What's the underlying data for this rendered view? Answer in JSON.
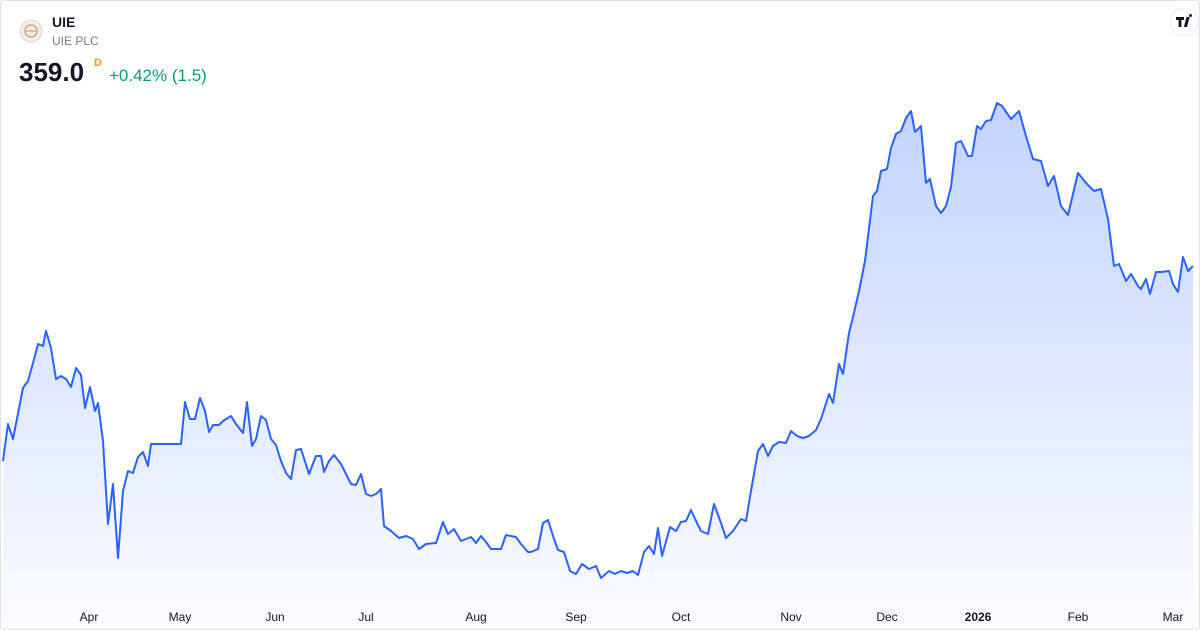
{
  "symbol": "UIE",
  "name": "UIE PLC",
  "price": "359.0",
  "interval": "D",
  "change": "+0.42% (1.5)",
  "chart_data": {
    "type": "area",
    "color": "#2962ff",
    "xlim": [
      0,
      240
    ],
    "ylim": [
      213,
      465
    ],
    "xticks": [
      {
        "value": 17.6,
        "label": "Apr"
      },
      {
        "value": 35.8,
        "label": "May"
      },
      {
        "value": 54.8,
        "label": "Jun"
      },
      {
        "value": 73,
        "label": "Jul"
      },
      {
        "value": 95,
        "label": "Aug"
      },
      {
        "value": 115,
        "label": "Sep"
      },
      {
        "value": 136,
        "label": "Oct"
      },
      {
        "value": 158,
        "label": "Nov"
      },
      {
        "value": 177.2,
        "label": "Dec"
      },
      {
        "value": 195.4,
        "label": "2026",
        "bold": true
      },
      {
        "value": 215.4,
        "label": "Feb"
      },
      {
        "value": 234.4,
        "label": "Mar"
      }
    ],
    "x": [
      0.4,
      1.4,
      2.4,
      4.4,
      5.4,
      6.4,
      7.4,
      8.4,
      9,
      10,
      11,
      12,
      13,
      14,
      15,
      16,
      16.8,
      17.8,
      18.8,
      19.4,
      20.4,
      21.4,
      22.4,
      23.4,
      24.4,
      25.4,
      26.4,
      27.4,
      28.4,
      29.4,
      30,
      32,
      34,
      36,
      36.8,
      37.8,
      38.8,
      39.8,
      40.8,
      41.6,
      42.4,
      43.6,
      44.4,
      46,
      47,
      48.4,
      49.2,
      50.2,
      51,
      52,
      53,
      54,
      55,
      56,
      57,
      58,
      59,
      60,
      61.6,
      63,
      64,
      64.6,
      65.6,
      66.6,
      68,
      70,
      71,
      72,
      73,
      74,
      75,
      76,
      76.6,
      78,
      79.6,
      81,
      82.4,
      83.6,
      85,
      87,
      88.4,
      89.4,
      90.6,
      92,
      94,
      95,
      96,
      97,
      98,
      100,
      101,
      103,
      104,
      105.4,
      106,
      107.4,
      108.4,
      109.4,
      110.6,
      111.4,
      112.6,
      113.8,
      115,
      116.2,
      117.6,
      119,
      120,
      121.6,
      122.8,
      124,
      125.2,
      126.4,
      127.4,
      128.6,
      129.6,
      130.6,
      131.4,
      132.2,
      133.8,
      135,
      136,
      137,
      138,
      139,
      140,
      141.4,
      142.6,
      144,
      145,
      146.4,
      148,
      149,
      150,
      151.4,
      152.4,
      153.4,
      154.4,
      155.6,
      157,
      158,
      159.2,
      160.4,
      161.6,
      163,
      164,
      165.6,
      166.4,
      167.6,
      168.4,
      169.6,
      170.4,
      171.6,
      172.8,
      174.4,
      175.2,
      176,
      177.2,
      178,
      179,
      180,
      181,
      182,
      182.8,
      184,
      185,
      185.8,
      187,
      188,
      189,
      190,
      191,
      192,
      193.4,
      194.2,
      195.2,
      196,
      197,
      198,
      199.2,
      200.2,
      202,
      203.6,
      205,
      206.4,
      208,
      209.4,
      210.6,
      212,
      213.4,
      215.4,
      217.2,
      218.6,
      220,
      221.4,
      222.6,
      223.6,
      225,
      226,
      227.4,
      228,
      229,
      229.8,
      231,
      232,
      233.6,
      234.4,
      235.4,
      236.4,
      237.4,
      238.4
    ],
    "values": [
      281,
      295.8,
      289.8,
      310.2,
      313,
      320.2,
      327.8,
      327,
      333,
      326.2,
      313.8,
      315,
      313.8,
      310.6,
      318.2,
      315.4,
      302.2,
      310.6,
      301,
      304.2,
      289,
      255.8,
      271.8,
      242.2,
      269,
      277,
      276.2,
      282.6,
      284.6,
      279,
      287.8,
      287.8,
      287.8,
      287.8,
      304.6,
      297.8,
      297.8,
      306.2,
      301,
      292.6,
      295.4,
      295.4,
      297,
      299,
      295.8,
      292.2,
      304.6,
      287,
      289.8,
      299,
      297.4,
      289.8,
      287.4,
      281,
      276.2,
      273.8,
      285.4,
      285.8,
      275.8,
      283,
      283,
      276.6,
      281,
      283.4,
      279.8,
      271.8,
      271.4,
      275.8,
      267.8,
      267,
      267.8,
      269.8,
      255,
      253,
      250.2,
      251,
      249.8,
      245.8,
      247.8,
      248.2,
      256.6,
      251.8,
      253.8,
      249,
      250.6,
      248.2,
      251,
      248.6,
      245.8,
      245.8,
      251.4,
      250.6,
      247.8,
      244.6,
      244.6,
      245.8,
      256.2,
      257.4,
      249.8,
      245.4,
      244.6,
      237,
      235.8,
      239.8,
      237.8,
      239,
      234.2,
      237,
      235.8,
      237,
      236.2,
      237,
      235.4,
      244.6,
      247,
      243.8,
      254.2,
      243,
      254.6,
      253,
      256.6,
      257,
      261.4,
      257,
      253,
      251.8,
      263.8,
      256.2,
      250.2,
      253,
      257.8,
      257,
      269,
      285,
      287.8,
      283,
      287,
      288.6,
      288.2,
      293,
      291,
      290.2,
      291,
      293.4,
      297.8,
      307.8,
      304.2,
      319.8,
      315.8,
      332.2,
      338.6,
      349,
      361,
      387,
      389,
      397,
      397.8,
      406.2,
      411.8,
      413,
      418.2,
      421,
      412.6,
      415,
      392.2,
      393.8,
      383,
      380.2,
      383,
      390.6,
      408.2,
      409,
      403,
      403,
      415,
      413.8,
      417,
      417.4,
      424.2,
      423,
      417.8,
      421,
      411,
      401.8,
      401,
      391,
      395,
      383,
      379.4,
      396.2,
      391.8,
      389,
      389.8,
      377.8,
      359,
      359.8,
      353,
      355.8,
      351,
      349.8,
      353.8,
      347.8,
      356.6,
      356.6,
      357,
      351.8,
      348.6,
      362.6,
      357,
      359
    ]
  }
}
